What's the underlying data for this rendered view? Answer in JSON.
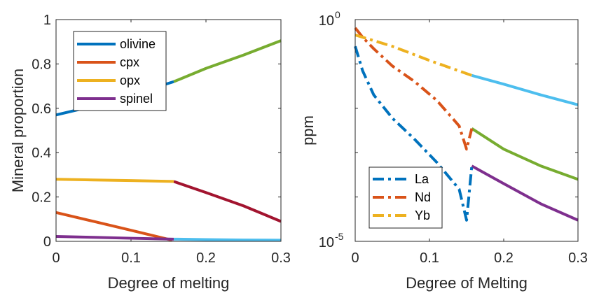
{
  "chart_data": [
    {
      "type": "line",
      "xlabel": "Degree of melting",
      "ylabel": "Mineral proportion",
      "xlim": [
        0,
        0.3
      ],
      "ylim": [
        0,
        1
      ],
      "xticks": [
        "0",
        "0.1",
        "0.2",
        "0.3"
      ],
      "yticks": [
        "0",
        "0.2",
        "0.4",
        "0.6",
        "0.8",
        "1"
      ],
      "legend": {
        "placement": "top-left",
        "entries": [
          "olivine",
          "cpx",
          "opx",
          "spinel"
        ]
      },
      "series": [
        {
          "name": "olivine",
          "color": "#0072BD",
          "x": [
            0,
            0.05,
            0.1,
            0.157
          ],
          "y": [
            0.57,
            0.61,
            0.66,
            0.72
          ]
        },
        {
          "name": "cpx",
          "color": "#D95319",
          "x": [
            0,
            0.05,
            0.1,
            0.155
          ],
          "y": [
            0.13,
            0.09,
            0.05,
            0.005
          ]
        },
        {
          "name": "opx",
          "color": "#EDB120",
          "x": [
            0,
            0.05,
            0.1,
            0.157
          ],
          "y": [
            0.28,
            0.277,
            0.274,
            0.27
          ]
        },
        {
          "name": "spinel",
          "color": "#7E2F8E",
          "x": [
            0,
            0.05,
            0.1,
            0.157
          ],
          "y": [
            0.022,
            0.018,
            0.014,
            0.01
          ]
        }
      ],
      "extra_series": [
        {
          "color": "#77AC30",
          "x": [
            0.157,
            0.2,
            0.25,
            0.3
          ],
          "y": [
            0.72,
            0.78,
            0.84,
            0.905
          ]
        },
        {
          "color": "#A2142F",
          "x": [
            0.157,
            0.2,
            0.25,
            0.3
          ],
          "y": [
            0.27,
            0.22,
            0.16,
            0.09
          ]
        },
        {
          "color": "#4DBEEE",
          "x": [
            0.157,
            0.2,
            0.25,
            0.3
          ],
          "y": [
            0.01,
            0.008,
            0.006,
            0.005
          ]
        }
      ]
    },
    {
      "type": "line",
      "xlabel": "Degree of Melting",
      "ylabel": "ppm",
      "xlim": [
        0,
        0.3
      ],
      "ylim": [
        1e-05,
        1
      ],
      "yscale": "log",
      "xticks": [
        "0",
        "0.1",
        "0.2",
        "0.3"
      ],
      "ytick_labels": [
        {
          "base": "10",
          "exp": "0",
          "value": 1
        },
        {
          "base": "10",
          "exp": "-5",
          "value": 1e-05
        }
      ],
      "legend": {
        "placement": "bottom-left",
        "entries": [
          "La",
          "Nd",
          "Yb"
        ]
      },
      "series": [
        {
          "name": "La",
          "color": "#0072BD",
          "dash": true,
          "x": [
            0,
            0.01,
            0.025,
            0.05,
            0.08,
            0.11,
            0.14,
            0.15,
            0.157
          ],
          "y": [
            0.25,
            0.07,
            0.02,
            0.006,
            0.002,
            0.0006,
            0.00015,
            3e-05,
            0.0005
          ]
        },
        {
          "name": "Nd",
          "color": "#D95319",
          "dash": true,
          "x": [
            0,
            0.01,
            0.025,
            0.05,
            0.08,
            0.11,
            0.14,
            0.15,
            0.157
          ],
          "y": [
            0.65,
            0.4,
            0.22,
            0.09,
            0.04,
            0.015,
            0.004,
            0.0012,
            0.0035
          ]
        },
        {
          "name": "Yb",
          "color": "#EDB120",
          "dash": true,
          "x": [
            0,
            0.05,
            0.1,
            0.157
          ],
          "y": [
            0.45,
            0.25,
            0.12,
            0.055
          ]
        }
      ],
      "extra_series": [
        {
          "color": "#4DBEEE",
          "x": [
            0.157,
            0.2,
            0.25,
            0.3
          ],
          "y": [
            0.055,
            0.035,
            0.02,
            0.012
          ]
        },
        {
          "color": "#77AC30",
          "x": [
            0.157,
            0.2,
            0.25,
            0.3
          ],
          "y": [
            0.0035,
            0.0012,
            0.0005,
            0.00025
          ]
        },
        {
          "color": "#7E2F8E",
          "x": [
            0.157,
            0.2,
            0.25,
            0.3
          ],
          "y": [
            0.0005,
            0.0002,
            7e-05,
            3e-05
          ]
        }
      ]
    }
  ]
}
